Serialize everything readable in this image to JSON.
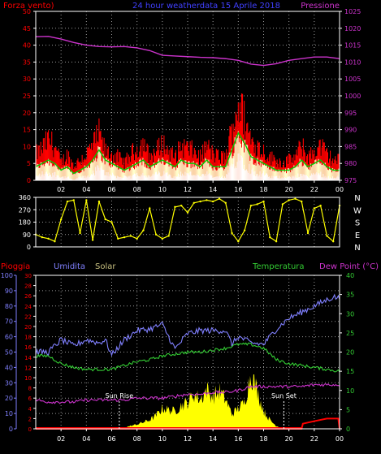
{
  "title": "24 hour weatherdata  15 Aprile 2018",
  "colors": {
    "background": "#000000",
    "wind_gust": "#ff0000",
    "wind_avg": "#00cc00",
    "wind_min": "#ffffff",
    "wind_light": "#ffffcc",
    "pressure": "#cc33cc",
    "direction": "#ffff00",
    "rain": "#ff0000",
    "humidity": "#8080ff",
    "solar": "#ffff00",
    "temperature": "#33cc33",
    "dew_point": "#cc33cc",
    "left_axis_text": "#ff0000",
    "pressure_axis_text": "#cc33cc",
    "temp_axis_text": "#33cc33",
    "humidity_axis_text": "#8080ff",
    "label_solar": "#c8c080"
  },
  "chart_data": [
    {
      "type": "area",
      "panel": "wind-pressure",
      "labels": {
        "left": "Forza vento)",
        "right": "Pressione"
      },
      "x_ticks": [
        "02",
        "04",
        "06",
        "08",
        "10",
        "12",
        "14",
        "16",
        "18",
        "20",
        "22",
        "00"
      ],
      "x_range": [
        0,
        24
      ],
      "left_axis": {
        "ticks": [
          0,
          5,
          10,
          15,
          20,
          25,
          30,
          35,
          40,
          45,
          50
        ],
        "ylim": [
          0,
          50
        ]
      },
      "right_axis": {
        "ticks": [
          975,
          980,
          985,
          990,
          995,
          1000,
          1005,
          1010,
          1015,
          1020,
          1025
        ],
        "ylim": [
          975,
          1025
        ]
      },
      "grid": true,
      "series": [
        {
          "name": "gust",
          "x": [
            0,
            0.5,
            1,
            1.5,
            2,
            2.5,
            3,
            3.5,
            4,
            4.5,
            5,
            5.5,
            6,
            6.5,
            7,
            7.5,
            8,
            8.5,
            9,
            9.5,
            10,
            10.5,
            11,
            11.5,
            12,
            12.5,
            13,
            13.5,
            14,
            14.5,
            15,
            15.5,
            16,
            16.5,
            17,
            17.5,
            18,
            18.5,
            19,
            19.5,
            20,
            20.5,
            21,
            21.5,
            22,
            22.5,
            23,
            23.5,
            24
          ],
          "values": [
            9,
            11,
            14,
            12,
            6,
            9,
            5,
            7,
            9,
            12,
            16,
            10,
            9,
            8,
            6,
            9,
            11,
            13,
            8,
            10,
            13,
            10,
            8,
            12,
            11,
            10,
            8,
            12,
            9,
            8,
            8,
            18,
            27,
            21,
            14,
            12,
            10,
            8,
            7,
            6,
            7,
            8,
            12,
            8,
            10,
            12,
            9,
            7,
            7
          ]
        },
        {
          "name": "average",
          "x": [
            0,
            0.5,
            1,
            1.5,
            2,
            2.5,
            3,
            3.5,
            4,
            4.5,
            5,
            5.5,
            6,
            6.5,
            7,
            7.5,
            8,
            8.5,
            9,
            9.5,
            10,
            10.5,
            11,
            11.5,
            12,
            12.5,
            13,
            13.5,
            14,
            14.5,
            15,
            15.5,
            16,
            16.5,
            17,
            17.5,
            18,
            18.5,
            19,
            19.5,
            20,
            20.5,
            21,
            21.5,
            22,
            22.5,
            23,
            23.5,
            24
          ],
          "values": [
            4,
            5,
            6,
            5,
            3,
            4,
            2,
            3,
            4,
            6,
            9,
            6,
            5,
            4,
            3,
            4,
            5,
            6,
            4,
            5,
            6,
            5,
            4,
            6,
            5,
            5,
            4,
            6,
            4,
            4,
            4,
            9,
            14,
            11,
            7,
            6,
            5,
            4,
            3,
            3,
            3,
            4,
            6,
            4,
            5,
            6,
            4,
            3,
            3
          ]
        },
        {
          "name": "minimum",
          "x": [
            0,
            0.5,
            1,
            1.5,
            2,
            2.5,
            3,
            3.5,
            4,
            4.5,
            5,
            5.5,
            6,
            6.5,
            7,
            7.5,
            8,
            8.5,
            9,
            9.5,
            10,
            10.5,
            11,
            11.5,
            12,
            12.5,
            13,
            13.5,
            14,
            14.5,
            15,
            15.5,
            16,
            16.5,
            17,
            17.5,
            18,
            18.5,
            19,
            19.5,
            20,
            20.5,
            21,
            21.5,
            22,
            22.5,
            23,
            23.5,
            24
          ],
          "values": [
            1,
            2,
            2,
            2,
            1,
            1,
            0,
            1,
            1,
            2,
            4,
            2,
            2,
            1,
            1,
            1,
            2,
            2,
            1,
            2,
            2,
            2,
            1,
            2,
            2,
            2,
            1,
            2,
            1,
            1,
            1,
            4,
            8,
            6,
            3,
            2,
            2,
            1,
            1,
            1,
            1,
            1,
            2,
            1,
            2,
            2,
            1,
            1,
            1
          ]
        },
        {
          "name": "pressure",
          "axis": "right",
          "x": [
            0,
            1,
            2,
            3,
            4,
            5,
            6,
            7,
            8,
            9,
            10,
            11,
            12,
            13,
            14,
            15,
            16,
            17,
            18,
            19,
            20,
            21,
            22,
            23,
            24
          ],
          "values": [
            1017.5,
            1017.6,
            1016.8,
            1015.8,
            1015.0,
            1014.6,
            1014.5,
            1014.6,
            1014.2,
            1013.4,
            1012.0,
            1011.8,
            1011.6,
            1011.4,
            1011.3,
            1011.0,
            1010.5,
            1009.4,
            1009.0,
            1009.5,
            1010.5,
            1011.0,
            1011.5,
            1011.5,
            1011.0
          ]
        }
      ]
    },
    {
      "type": "scatter",
      "panel": "wind-direction",
      "y_ticks": [
        0,
        90,
        180,
        270,
        360
      ],
      "ylim": [
        0,
        360
      ],
      "cardinals": [
        "N",
        "W",
        "S",
        "E",
        "N"
      ],
      "x_range": [
        0,
        24
      ],
      "grid": true,
      "series": [
        {
          "name": "direction",
          "x": [
            0,
            0.5,
            1,
            1.5,
            2,
            2.5,
            3,
            3.5,
            4,
            4.5,
            5,
            5.5,
            6,
            6.5,
            7,
            7.5,
            8,
            8.5,
            9,
            9.5,
            10,
            10.5,
            11,
            11.5,
            12,
            12.5,
            13,
            13.5,
            14,
            14.5,
            15,
            15.5,
            16,
            16.5,
            17,
            17.5,
            18,
            18.5,
            19,
            19.5,
            20,
            20.5,
            21,
            21.5,
            22,
            22.5,
            23,
            23.5,
            24
          ],
          "values": [
            90,
            70,
            60,
            40,
            200,
            330,
            340,
            100,
            340,
            50,
            330,
            200,
            180,
            60,
            70,
            80,
            60,
            120,
            280,
            90,
            60,
            80,
            290,
            300,
            250,
            320,
            330,
            340,
            330,
            350,
            320,
            100,
            40,
            120,
            300,
            310,
            330,
            70,
            40,
            310,
            340,
            350,
            330,
            100,
            280,
            300,
            80,
            40,
            300
          ]
        }
      ]
    },
    {
      "type": "line",
      "panel": "rain-humidity-solar-temperature",
      "labels": {
        "rain": "Pioggia",
        "humidity": "Umidita",
        "solar": "Solar",
        "temperature": "Temperatura",
        "dew_point": "Dew Point (°C)"
      },
      "x_ticks": [
        "02",
        "04",
        "06",
        "08",
        "10",
        "12",
        "14",
        "16",
        "18",
        "20",
        "22",
        "00"
      ],
      "x_range": [
        0,
        24
      ],
      "humidity_axis": {
        "ticks": [
          0,
          10,
          20,
          30,
          40,
          50,
          60,
          70,
          80,
          90,
          100
        ],
        "ylim": [
          0,
          100
        ]
      },
      "rain_axis": {
        "ticks": [
          0,
          2,
          4,
          6,
          8,
          10,
          12,
          14,
          16,
          18,
          20,
          22,
          24,
          26,
          28,
          30
        ],
        "ylim": [
          0,
          30
        ]
      },
      "temperature_axis": {
        "ticks": [
          0,
          5,
          10,
          15,
          20,
          25,
          30,
          35,
          40
        ],
        "ylim": [
          0,
          40
        ]
      },
      "annotations": [
        {
          "text": "Sun Rise",
          "x": 6.6
        },
        {
          "text": "Sun Set",
          "x": 19.6
        }
      ],
      "grid": true,
      "series": [
        {
          "name": "humidity",
          "axis": "humidity",
          "x": [
            0,
            1,
            2,
            3,
            4,
            5,
            5.5,
            6,
            7,
            8,
            9,
            10,
            10.5,
            11,
            12,
            13,
            14,
            15,
            15.5,
            16,
            17,
            18,
            19,
            20,
            21,
            22,
            23,
            23.5,
            24
          ],
          "values": [
            50,
            50,
            58,
            54,
            58,
            56,
            58,
            48,
            58,
            64,
            65,
            68,
            60,
            52,
            62,
            64,
            64,
            64,
            55,
            60,
            56,
            55,
            65,
            72,
            76,
            80,
            84,
            86,
            85
          ]
        },
        {
          "name": "temperature",
          "axis": "temperature",
          "x": [
            0,
            1,
            2,
            3,
            4,
            5,
            6,
            7,
            8,
            9,
            10,
            11,
            12,
            13,
            14,
            15,
            16,
            17,
            18,
            19,
            20,
            21,
            22,
            23,
            24
          ],
          "values": [
            19,
            19,
            17,
            16,
            15.5,
            15.5,
            15.5,
            16.5,
            17.5,
            18,
            19,
            19.5,
            20,
            20,
            20.5,
            21,
            22,
            22,
            21,
            18,
            17,
            16.5,
            16,
            15.5,
            15
          ]
        },
        {
          "name": "dew_point",
          "axis": "temperature",
          "x": [
            0,
            1,
            2,
            3,
            4,
            5,
            6,
            7,
            8,
            9,
            10,
            11,
            12,
            13,
            14,
            15,
            16,
            17,
            18,
            19,
            20,
            21,
            22,
            23,
            24
          ],
          "values": [
            7.5,
            7,
            7,
            7,
            7.5,
            7.5,
            7.5,
            7.5,
            8,
            8,
            8,
            8.5,
            9,
            9,
            9.5,
            9.5,
            10,
            11,
            11,
            11,
            11,
            11,
            11.5,
            11.5,
            11.5
          ]
        },
        {
          "name": "rain",
          "axis": "rain",
          "x": [
            0,
            0.5,
            21,
            21.1,
            22,
            23,
            23.9,
            24
          ],
          "values": [
            0,
            0,
            0,
            1,
            1.5,
            2,
            2,
            0
          ]
        },
        {
          "name": "solar",
          "axis": "humidity",
          "x": [
            6.6,
            7,
            8,
            9,
            9.5,
            10,
            10.5,
            11,
            11.5,
            12,
            12.5,
            13,
            13.5,
            14,
            14.5,
            15,
            15.5,
            16,
            16.5,
            17,
            17.5,
            18,
            18.5,
            19,
            19.6
          ],
          "values": [
            0,
            1,
            3,
            6,
            9,
            14,
            13,
            12,
            16,
            18,
            24,
            20,
            27,
            22,
            26,
            20,
            10,
            14,
            18,
            38,
            26,
            12,
            6,
            2,
            0
          ]
        }
      ]
    }
  ]
}
